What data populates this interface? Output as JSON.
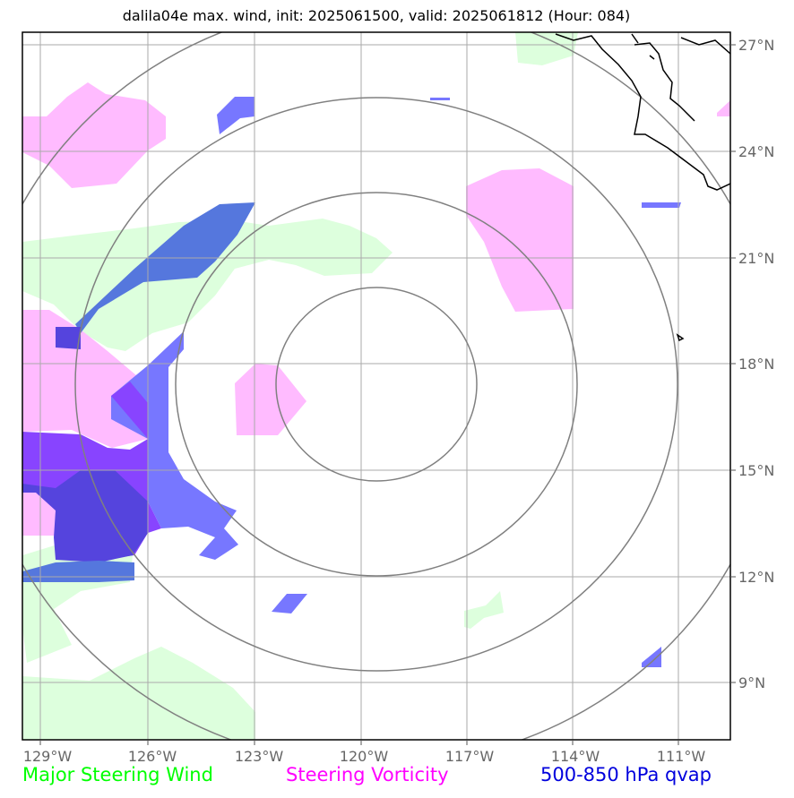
{
  "title": "dalila04e max. wind, init: 2025061500, valid: 2025061812 (Hour: 084)",
  "legend": {
    "green": "Major Steering Wind",
    "magenta": "Steering Vorticity",
    "blue": "500-850 hPa qvap"
  },
  "lon_ticks": [
    "129°W",
    "126°W",
    "123°W",
    "120°W",
    "117°W",
    "114°W",
    "111°W"
  ],
  "lat_ticks": [
    "27°N",
    "24°N",
    "21°N",
    "18°N",
    "15°N",
    "12°N",
    "9°N"
  ],
  "colors": {
    "steering_wind": "#ddffdd",
    "vorticity": "#ffbbff",
    "qvap_light": "#7777ff",
    "qvap_mid": "#5577dd",
    "qvap_purple": "#8844ff",
    "qvap_dark": "#5544dd",
    "range_rings": "#808080",
    "grid": "#aaaaaa",
    "coast": "#000000"
  },
  "map": {
    "lon_range": [
      -129.5,
      -109.5
    ],
    "lat_range": [
      7.5,
      27.5
    ],
    "storm_center": {
      "lon": "119.6°W",
      "lat": "17.5°N"
    },
    "range_ring_count": 4
  }
}
